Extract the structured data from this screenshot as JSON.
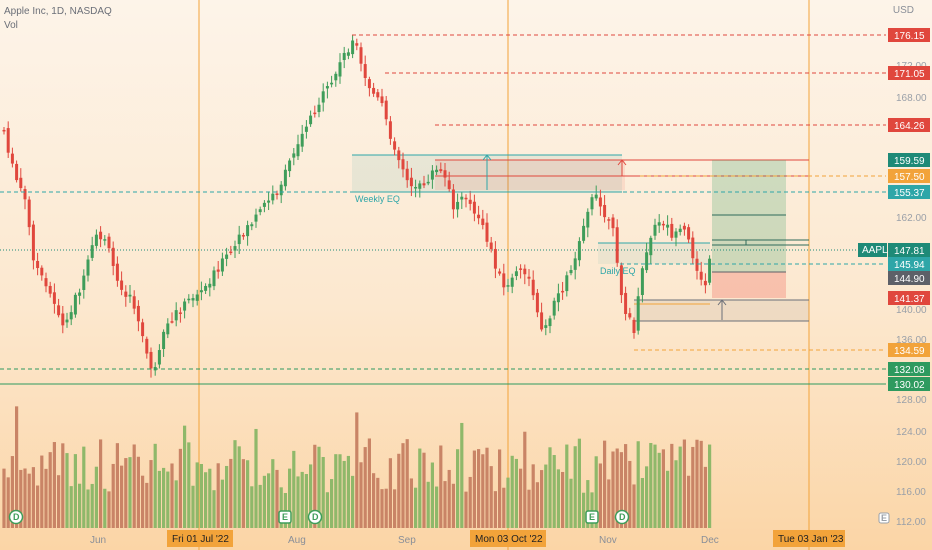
{
  "header": {
    "symbol": "Apple Inc, 1D, NASDAQ",
    "volume_label": "Vol"
  },
  "axis": {
    "currency": "USD",
    "ticks": [
      "172.00",
      "168.00",
      "162.00",
      "140.00",
      "136.00",
      "128.00",
      "124.00",
      "120.00",
      "116.00",
      "112.00"
    ],
    "ticker": "AAPL"
  },
  "price_tags": [
    {
      "id": "level-176",
      "label": "176.15",
      "color": "#e0473d",
      "style": "dashed"
    },
    {
      "id": "level-171",
      "label": "171.05",
      "color": "#e0473d",
      "style": "dashed"
    },
    {
      "id": "level-164",
      "label": "164.26",
      "color": "#e0473d",
      "style": "dashed"
    },
    {
      "id": "target-159",
      "label": "159.59",
      "color": "#1e8a77",
      "style": "none"
    },
    {
      "id": "level-157",
      "label": "157.50",
      "color": "#f2a33a",
      "style": "dashed"
    },
    {
      "id": "level-155",
      "label": "155.37",
      "color": "#2ea6a8",
      "style": "dashed"
    },
    {
      "id": "current-147",
      "label": "147.81",
      "color": "#1e8a77",
      "style": "none"
    },
    {
      "id": "level-145",
      "label": "145.94",
      "color": "#2ea6a8",
      "style": "dashed"
    },
    {
      "id": "entry-144",
      "label": "144.90",
      "color": "#5d6068",
      "style": "none"
    },
    {
      "id": "stop-141",
      "label": "141.37",
      "color": "#e0473d",
      "style": "none"
    },
    {
      "id": "level-134",
      "label": "134.59",
      "color": "#f2a33a",
      "style": "dashed"
    },
    {
      "id": "level-132",
      "label": "132.08",
      "color": "#2e9a5f",
      "style": "dashed"
    },
    {
      "id": "level-130",
      "label": "130.02",
      "color": "#2e9a5f",
      "style": "solid"
    }
  ],
  "zones": {
    "weekly": "Weekly EQ",
    "daily": "Daily EQ"
  },
  "x_axis": {
    "labels": [
      "Jun",
      "Aug",
      "Sep",
      "Nov",
      "Dec"
    ],
    "highlighted": [
      "Fri 01 Jul '22",
      "Mon 03 Oct '22",
      "Tue 03 Jan '23"
    ]
  },
  "events": {
    "dividend": "D",
    "earnings": "E"
  },
  "colors": {
    "up": "#3f9d5a",
    "down": "#e0473d",
    "vol_up": "#8fb86a",
    "vol_down": "#c98466",
    "vline": "#f2a33a",
    "text": "#6b6f78"
  }
}
